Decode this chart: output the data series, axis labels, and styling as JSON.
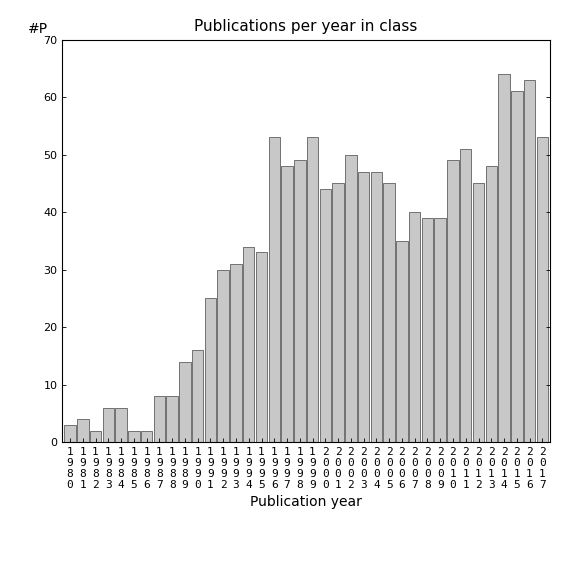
{
  "title": "Publications per year in class",
  "xlabel": "Publication year",
  "ylabel": "#P",
  "ylim": [
    0,
    70
  ],
  "yticks": [
    0,
    10,
    20,
    30,
    40,
    50,
    60,
    70
  ],
  "bar_color": "#c8c8c8",
  "bar_edgecolor": "#444444",
  "years": [
    1980,
    1981,
    1982,
    1983,
    1984,
    1985,
    1986,
    1987,
    1988,
    1989,
    1990,
    1991,
    1992,
    1993,
    1994,
    1995,
    1996,
    1997,
    1998,
    1999,
    2000,
    2001,
    2002,
    2003,
    2004,
    2005,
    2006,
    2007,
    2008,
    2009,
    2010,
    2011,
    2012,
    2013,
    2014,
    2015,
    2016,
    2017
  ],
  "values": [
    3,
    4,
    2,
    6,
    6,
    2,
    2,
    8,
    8,
    14,
    16,
    25,
    30,
    31,
    34,
    33,
    53,
    48,
    49,
    53,
    44,
    45,
    50,
    47,
    47,
    45,
    35,
    40,
    39,
    39,
    49,
    51,
    45,
    48,
    64,
    61,
    63,
    53
  ],
  "background_color": "#ffffff",
  "title_fontsize": 11,
  "axis_fontsize": 10,
  "tick_fontsize": 8
}
